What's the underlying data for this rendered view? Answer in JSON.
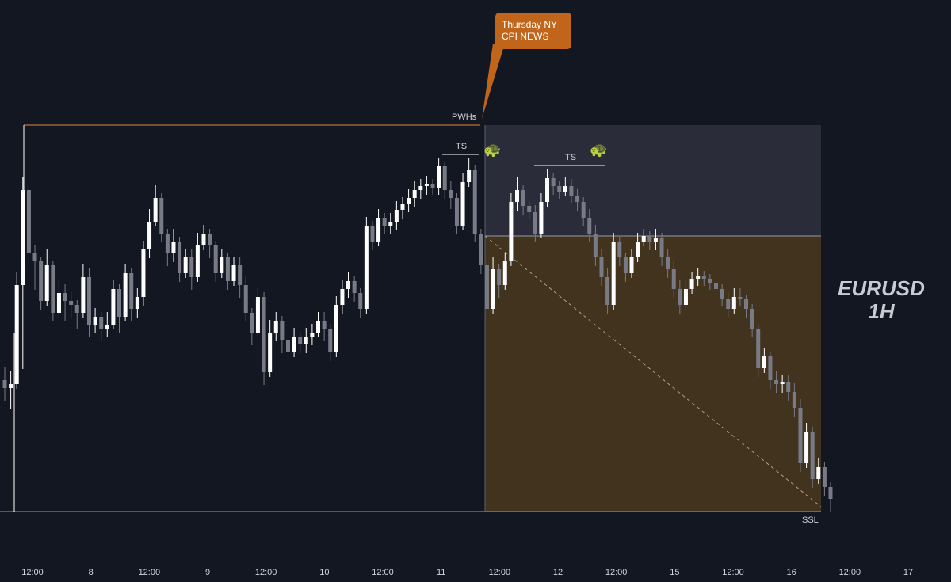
{
  "colors": {
    "background": "#131722",
    "candle_bull": "#ffffff",
    "candle_bear": "#787b86",
    "level_line": "#e08a3a",
    "premium_zone": "#2a2c3a",
    "discount_zone": "#42331f",
    "callout_bg": "#c0651a",
    "text": "#d1d4dc"
  },
  "chart_data": {
    "type": "candlestick",
    "title": "EURUSD",
    "subtitle": "1H",
    "x_tick_labels": [
      "12:00",
      "8",
      "12:00",
      "9",
      "12:00",
      "10",
      "12:00",
      "11",
      "12:00",
      "12",
      "12:00",
      "15",
      "12:00",
      "16",
      "12:00",
      "17"
    ],
    "levels": [
      {
        "label": "PWHs",
        "kind": "previous week high"
      },
      {
        "label": "SSL",
        "kind": "sell-side liquidity"
      }
    ],
    "annotations": [
      {
        "label": "TS",
        "icon": "turtle-icon"
      },
      {
        "label": "TS",
        "icon": "turtle-icon"
      }
    ],
    "callout": {
      "line1": "Thursday NY",
      "line2": "CPI NEWS"
    },
    "zones": [
      "premium",
      "discount"
    ],
    "candles": [
      [
        480,
        500,
        470,
        490
      ],
      [
        490,
        510,
        475,
        485
      ],
      [
        485,
        470,
        350,
        360
      ],
      [
        360,
        460,
        230,
        240
      ],
      [
        240,
        250,
        330,
        320
      ],
      [
        320,
        315,
        360,
        330
      ],
      [
        330,
        340,
        385,
        380
      ],
      [
        380,
        370,
        320,
        335
      ],
      [
        335,
        350,
        400,
        395
      ],
      [
        395,
        385,
        360,
        370
      ],
      [
        370,
        365,
        400,
        380
      ],
      [
        380,
        375,
        395,
        385
      ],
      [
        385,
        390,
        410,
        395
      ],
      [
        395,
        355,
        340,
        350
      ],
      [
        350,
        345,
        420,
        410
      ],
      [
        410,
        415,
        395,
        400
      ],
      [
        400,
        405,
        425,
        415
      ],
      [
        415,
        420,
        400,
        410
      ],
      [
        410,
        405,
        360,
        365
      ],
      [
        365,
        375,
        415,
        400
      ],
      [
        400,
        390,
        340,
        345
      ],
      [
        345,
        350,
        400,
        390
      ],
      [
        390,
        395,
        370,
        375
      ],
      [
        375,
        380,
        310,
        315
      ],
      [
        315,
        320,
        270,
        280
      ],
      [
        280,
        270,
        240,
        250
      ],
      [
        250,
        255,
        300,
        295
      ],
      [
        295,
        300,
        330,
        320
      ],
      [
        320,
        325,
        295,
        305
      ],
      [
        305,
        310,
        350,
        345
      ],
      [
        345,
        340,
        320,
        325
      ],
      [
        325,
        320,
        360,
        350
      ],
      [
        350,
        345,
        300,
        310
      ],
      [
        310,
        305,
        290,
        295
      ],
      [
        295,
        300,
        320,
        310
      ],
      [
        310,
        320,
        350,
        345
      ],
      [
        345,
        340,
        320,
        325
      ],
      [
        325,
        330,
        360,
        355
      ],
      [
        355,
        350,
        330,
        335
      ],
      [
        335,
        330,
        370,
        360
      ],
      [
        360,
        355,
        400,
        395
      ],
      [
        395,
        400,
        430,
        420
      ],
      [
        420,
        410,
        370,
        375
      ],
      [
        375,
        380,
        480,
        470
      ],
      [
        470,
        465,
        410,
        420
      ],
      [
        420,
        425,
        400,
        405
      ],
      [
        405,
        410,
        440,
        430
      ],
      [
        430,
        425,
        450,
        445
      ],
      [
        445,
        440,
        420,
        425
      ],
      [
        425,
        430,
        440,
        435
      ],
      [
        435,
        440,
        420,
        425
      ],
      [
        425,
        430,
        415,
        420
      ],
      [
        420,
        410,
        400,
        405
      ],
      [
        405,
        400,
        425,
        415
      ],
      [
        415,
        425,
        450,
        445
      ],
      [
        445,
        440,
        380,
        385
      ],
      [
        385,
        390,
        360,
        365
      ],
      [
        365,
        370,
        350,
        355
      ],
      [
        355,
        360,
        375,
        370
      ],
      [
        370,
        375,
        395,
        390
      ],
      [
        390,
        385,
        280,
        285
      ],
      [
        285,
        290,
        310,
        305
      ],
      [
        305,
        300,
        270,
        275
      ],
      [
        275,
        280,
        290,
        285
      ],
      [
        285,
        290,
        275,
        280
      ],
      [
        280,
        285,
        260,
        265
      ],
      [
        265,
        270,
        255,
        258
      ],
      [
        258,
        262,
        245,
        250
      ],
      [
        250,
        255,
        235,
        240
      ],
      [
        240,
        245,
        232,
        235
      ],
      [
        235,
        240,
        228,
        232
      ],
      [
        232,
        236,
        240,
        238
      ],
      [
        238,
        240,
        205,
        210
      ],
      [
        210,
        215,
        245,
        240
      ],
      [
        240,
        235,
        258,
        250
      ],
      [
        250,
        255,
        290,
        285
      ],
      [
        285,
        280,
        225,
        230
      ],
      [
        230,
        225,
        205,
        215
      ],
      [
        215,
        220,
        300,
        295
      ],
      [
        295,
        300,
        340,
        335
      ],
      [
        335,
        330,
        395,
        390
      ],
      [
        390,
        380,
        330,
        340
      ],
      [
        340,
        345,
        370,
        360
      ],
      [
        360,
        355,
        325,
        330
      ],
      [
        330,
        320,
        250,
        255
      ],
      [
        255,
        260,
        230,
        240
      ],
      [
        240,
        245,
        265,
        260
      ],
      [
        260,
        262,
        270,
        268
      ],
      [
        268,
        265,
        300,
        295
      ],
      [
        295,
        290,
        250,
        255
      ],
      [
        255,
        250,
        220,
        225
      ],
      [
        225,
        230,
        240,
        235
      ],
      [
        235,
        238,
        245,
        242
      ],
      [
        242,
        240,
        230,
        235
      ],
      [
        235,
        232,
        250,
        248
      ],
      [
        248,
        245,
        260,
        255
      ],
      [
        255,
        260,
        280,
        275
      ],
      [
        275,
        270,
        300,
        295
      ],
      [
        295,
        290,
        330,
        325
      ],
      [
        325,
        320,
        355,
        350
      ],
      [
        350,
        345,
        390,
        385
      ],
      [
        385,
        380,
        300,
        305
      ],
      [
        305,
        310,
        330,
        325
      ],
      [
        325,
        330,
        350,
        345
      ],
      [
        345,
        340,
        320,
        325
      ],
      [
        325,
        320,
        300,
        305
      ],
      [
        305,
        300,
        295,
        298
      ],
      [
        298,
        300,
        310,
        305
      ],
      [
        305,
        310,
        295,
        300
      ],
      [
        300,
        305,
        330,
        325
      ],
      [
        325,
        320,
        345,
        340
      ],
      [
        340,
        335,
        370,
        365
      ],
      [
        365,
        360,
        390,
        385
      ],
      [
        385,
        380,
        360,
        365
      ],
      [
        365,
        355,
        350,
        352
      ],
      [
        352,
        355,
        345,
        348
      ],
      [
        348,
        350,
        355,
        352
      ],
      [
        352,
        355,
        360,
        358
      ],
      [
        358,
        355,
        370,
        365
      ],
      [
        365,
        370,
        380,
        378
      ],
      [
        378,
        375,
        395,
        390
      ],
      [
        390,
        385,
        370,
        375
      ],
      [
        375,
        370,
        380,
        378
      ],
      [
        378,
        380,
        395,
        390
      ],
      [
        390,
        395,
        420,
        415
      ],
      [
        415,
        420,
        470,
        465
      ],
      [
        465,
        460,
        445,
        450
      ],
      [
        450,
        455,
        485,
        480
      ],
      [
        480,
        475,
        490,
        485
      ],
      [
        485,
        490,
        480,
        482
      ],
      [
        482,
        480,
        500,
        495
      ],
      [
        495,
        490,
        520,
        515
      ],
      [
        515,
        510,
        590,
        585
      ],
      [
        585,
        580,
        540,
        545
      ],
      [
        545,
        550,
        610,
        605
      ],
      [
        605,
        600,
        585,
        590
      ],
      [
        590,
        595,
        620,
        615
      ],
      [
        615,
        620,
        640,
        630
      ]
    ]
  }
}
